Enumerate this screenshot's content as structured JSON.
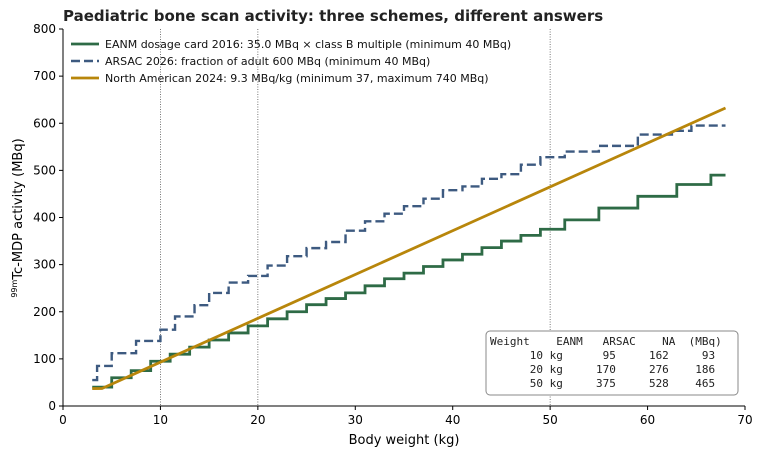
{
  "chart_data": {
    "type": "line",
    "title": "Paediatric bone scan activity: three schemes, different answers",
    "xlabel": "Body weight (kg)",
    "ylabel_pre": "",
    "ylabel_sup": "99m",
    "ylabel_post": "Tc-MDP activity (MBq)",
    "xlim": [
      0,
      70
    ],
    "ylim": [
      0,
      800
    ],
    "xticks": [
      0,
      10,
      20,
      30,
      40,
      50,
      60,
      70
    ],
    "yticks": [
      0,
      100,
      200,
      300,
      400,
      500,
      600,
      700,
      800
    ],
    "reference_lines_x": [
      10,
      20,
      50
    ],
    "grid": false,
    "legend_position": "upper-left",
    "series": [
      {
        "name": "EANM dosage card 2016: 35.0 MBq × class B multiple (minimum 40 MBq)",
        "color": "#2e6b46",
        "style": "solid",
        "step": true,
        "x": [
          3,
          5,
          7,
          9,
          11,
          13,
          15,
          17,
          19,
          21,
          23,
          25,
          27,
          29,
          31,
          33,
          35,
          37,
          39,
          41,
          43,
          45,
          47,
          49,
          51.5,
          55,
          59,
          63,
          66.5,
          68
        ],
        "y": [
          40,
          60,
          75,
          95,
          110,
          125,
          140,
          155,
          170,
          185,
          200,
          215,
          228,
          240,
          255,
          270,
          282,
          296,
          310,
          322,
          336,
          350,
          362,
          375,
          395,
          420,
          445,
          470,
          490,
          490
        ]
      },
      {
        "name": "ARSAC 2026: fraction of adult 600 MBq (minimum 40 MBq)",
        "color": "#3d5a80",
        "style": "dashed",
        "step": true,
        "x": [
          3,
          3.5,
          5,
          7.5,
          10,
          11.5,
          13.5,
          15,
          17,
          19,
          21,
          23,
          25,
          27,
          29,
          31,
          33,
          35,
          37,
          39,
          41,
          43,
          45,
          47,
          49,
          51.5,
          55,
          59,
          62.5,
          64.5,
          68
        ],
        "y": [
          55,
          85,
          112,
          138,
          162,
          190,
          214,
          240,
          262,
          276,
          298,
          318,
          335,
          348,
          372,
          392,
          408,
          424,
          440,
          458,
          466,
          482,
          492,
          512,
          528,
          540,
          552,
          576,
          584,
          595,
          595
        ]
      },
      {
        "name": "North American 2024: 9.3 MBq/kg (minimum 37, maximum 740 MBq)",
        "color": "#b8860b",
        "style": "solid",
        "step": false,
        "x": [
          3,
          4,
          68
        ],
        "y": [
          37,
          37.2,
          632.4
        ]
      }
    ],
    "table": {
      "header": "Weight    EANM   ARSAC    NA  (MBq)",
      "rows": [
        "      10 kg      95     162     93",
        "      20 kg     170     276    186",
        "      50 kg     375     528    465"
      ]
    }
  }
}
